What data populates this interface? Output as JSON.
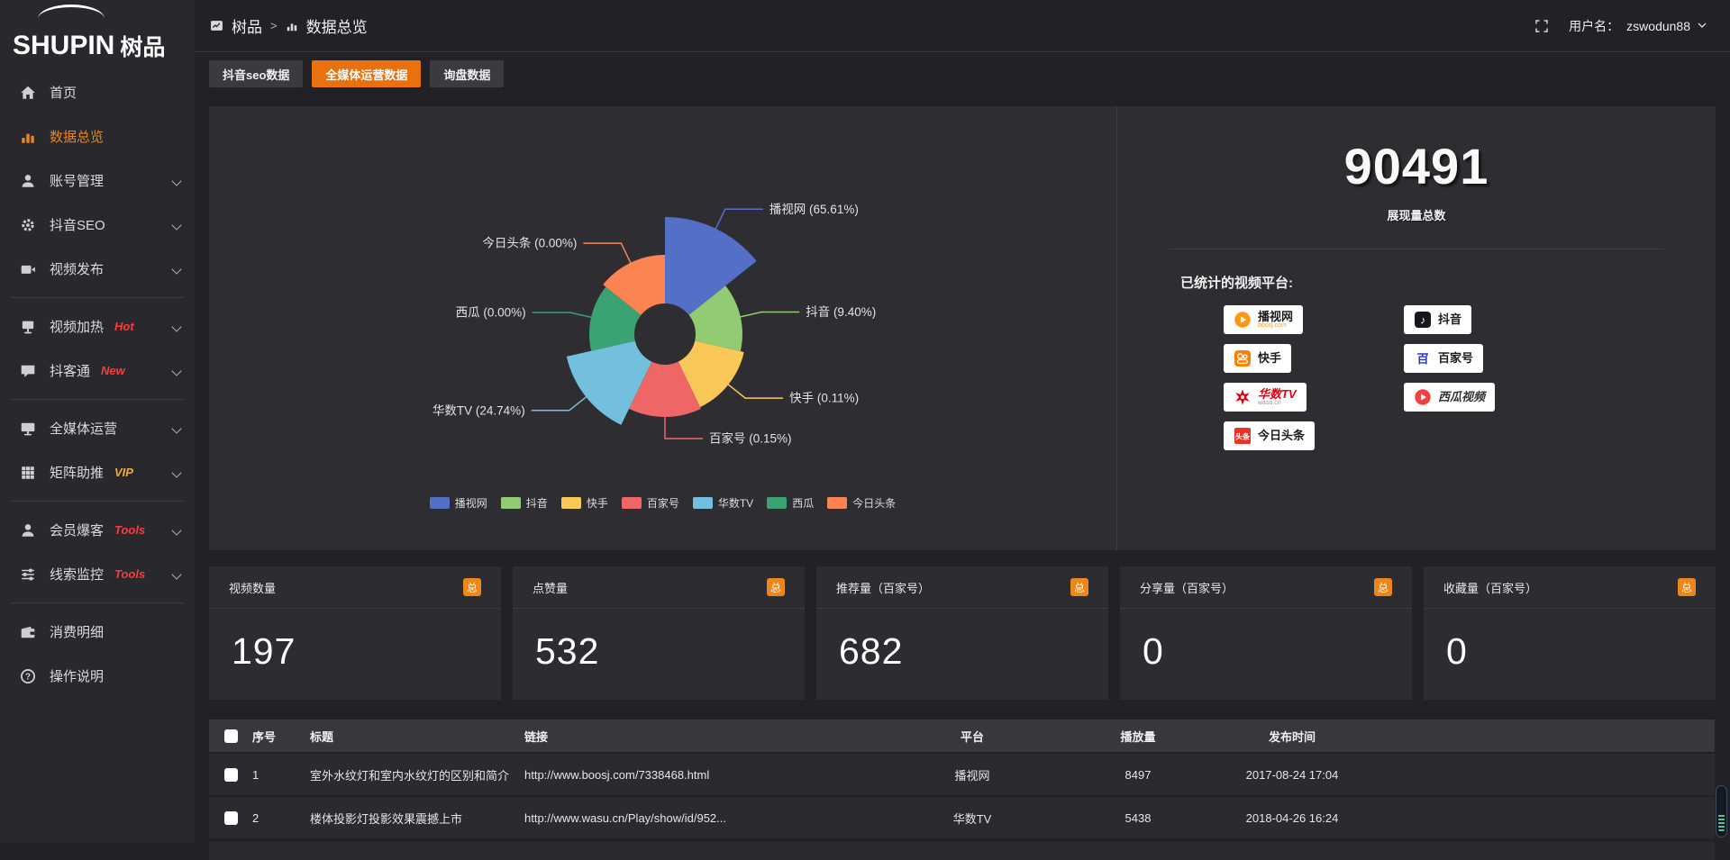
{
  "topbar": {
    "logo_en": "SHUPIN",
    "logo_cn": "树品",
    "breadcrumb": [
      "树品",
      "数据总览"
    ],
    "breadcrumb_sep": ">",
    "username_label": "用户名：",
    "username": "zswodun88"
  },
  "sidebar": {
    "items": [
      {
        "label": "首页",
        "icon": "home"
      },
      {
        "label": "数据总览",
        "icon": "chart",
        "active": true
      },
      {
        "label": "账号管理",
        "icon": "user",
        "chevron": true
      },
      {
        "label": "抖音SEO",
        "icon": "gear",
        "chevron": true
      },
      {
        "label": "视频发布",
        "icon": "video",
        "chevron": true
      },
      {
        "label": "视频加热",
        "icon": "heat",
        "badge": "Hot",
        "badge_color": "#fa3c3c",
        "chevron": true,
        "divider_before": true
      },
      {
        "label": "抖客通",
        "icon": "chat",
        "badge": "New",
        "badge_color": "#fa3c3c",
        "chevron": true
      },
      {
        "label": "全媒体运营",
        "icon": "monitor",
        "chevron": true,
        "divider_before": true
      },
      {
        "label": "矩阵助推",
        "icon": "grid",
        "badge": "VIP",
        "badge_color": "#f3a93c",
        "chevron": true
      },
      {
        "label": "会员爆客",
        "icon": "user",
        "badge": "Tools",
        "badge_color": "#fa3c3c",
        "chevron": true,
        "divider_before": true
      },
      {
        "label": "线索监控",
        "icon": "sliders",
        "badge": "Tools",
        "badge_color": "#fa3c3c",
        "chevron": true
      },
      {
        "label": "消费明细",
        "icon": "wallet",
        "divider_before": true
      },
      {
        "label": "操作说明",
        "icon": "question"
      }
    ]
  },
  "tabs": [
    {
      "label": "抖音seo数据"
    },
    {
      "label": "全媒体运营数据",
      "active": true
    },
    {
      "label": "询盘数据"
    }
  ],
  "chart_data": {
    "type": "pie",
    "subtype": "nightingale-rose",
    "title": "",
    "legend_position": "bottom",
    "hole_radius_px": 34,
    "items": [
      {
        "label": "播视网",
        "pct": "65.61%",
        "value": 65.61,
        "color": "#5470c6",
        "radius_px": 130
      },
      {
        "label": "抖音",
        "pct": "9.40%",
        "value": 9.4,
        "color": "#91cc75",
        "radius_px": 86
      },
      {
        "label": "快手",
        "pct": "0.11%",
        "value": 0.11,
        "color": "#fac858",
        "radius_px": 90
      },
      {
        "label": "百家号",
        "pct": "0.15%",
        "value": 0.15,
        "color": "#ee6666",
        "radius_px": 92
      },
      {
        "label": "华数TV",
        "pct": "24.74%",
        "value": 24.74,
        "color": "#73c0de",
        "radius_px": 112
      },
      {
        "label": "西瓜",
        "pct": "0.00%",
        "value": 0.0,
        "color": "#3ba272",
        "radius_px": 84
      },
      {
        "label": "今日头条",
        "pct": "0.00%",
        "value": 0.0,
        "color": "#fc8452",
        "radius_px": 88
      }
    ]
  },
  "summary": {
    "total_value": "90491",
    "total_label": "展现量总数",
    "platforms_label": "已统计的视频平台:",
    "platforms": [
      {
        "name": "播视网",
        "sub": "boosj.com",
        "style": "boosj"
      },
      {
        "name": "抖音",
        "style": "douyin"
      },
      {
        "name": "快手",
        "style": "kuaishou"
      },
      {
        "name": "百家号",
        "style": "baijia"
      },
      {
        "name": "华数TV",
        "sub": "wasu.cn",
        "style": "wasu"
      },
      {
        "name": "西瓜视频",
        "style": "xigua"
      },
      {
        "name": "今日头条",
        "style": "toutiao"
      }
    ]
  },
  "stat_cards": [
    {
      "label": "视频数量",
      "badge": "总",
      "value": "197"
    },
    {
      "label": "点赞量",
      "badge": "总",
      "value": "532"
    },
    {
      "label": "推荐量（百家号）",
      "badge": "总",
      "value": "682"
    },
    {
      "label": "分享量（百家号）",
      "badge": "总",
      "value": "0"
    },
    {
      "label": "收藏量（百家号）",
      "badge": "总",
      "value": "0"
    }
  ],
  "table": {
    "headers": [
      "序号",
      "标题",
      "链接",
      "平台",
      "播放量",
      "发布时间"
    ],
    "rows": [
      {
        "index": "1",
        "title": "室外水纹灯和室内水纹灯的区别和简介",
        "link": "http://www.boosj.com/7338468.html",
        "platform": "播视网",
        "plays": "8497",
        "time": "2017-08-24 17:04"
      },
      {
        "index": "2",
        "title": "楼体投影灯投影效果震撼上市",
        "link": "http://www.wasu.cn/Play/show/id/952...",
        "platform": "华数TV",
        "plays": "5438",
        "time": "2018-04-26 16:24"
      }
    ]
  },
  "colors": {
    "accent_orange": "#e8710d",
    "active_orange": "#f08519",
    "link_orange": "#ff7e1f",
    "hot_red": "#fa3c3c",
    "vip_gold": "#f3a93c",
    "panel_bg": "#2e2e32"
  }
}
